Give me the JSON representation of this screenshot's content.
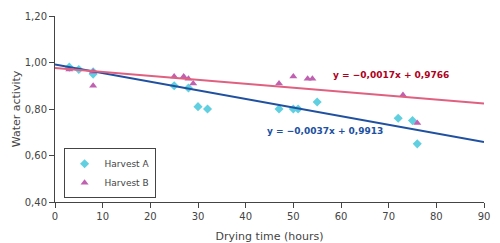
{
  "chart_data": {
    "type": "scatter",
    "x_label": "Drying time (hours)",
    "y_label": "Water activity",
    "series": [
      {
        "name": "Harvest A",
        "type": "scatter",
        "marker": "diamond",
        "color": "#60d0e0",
        "x": [
          3,
          5,
          8,
          8,
          25,
          28,
          30,
          32,
          47,
          50,
          51,
          55,
          72,
          75,
          76
        ],
        "values": [
          0.98,
          0.97,
          0.96,
          0.95,
          0.9,
          0.89,
          0.81,
          0.8,
          0.8,
          0.8,
          0.8,
          0.83,
          0.76,
          0.75,
          0.65
        ]
      },
      {
        "name": "Harvest B",
        "type": "scatter",
        "marker": "triangle",
        "color": "#c060b0",
        "x": [
          3,
          8,
          8,
          25,
          27,
          28,
          29,
          47,
          50,
          53,
          54,
          73,
          76
        ],
        "values": [
          0.97,
          0.96,
          0.9,
          0.94,
          0.94,
          0.93,
          0.91,
          0.91,
          0.94,
          0.93,
          0.93,
          0.86,
          0.74
        ]
      },
      {
        "type": "line",
        "color": "#2050a0",
        "x": [
          0,
          90
        ],
        "values": [
          0.9913,
          0.6583
        ]
      },
      {
        "type": "line",
        "color": "#e06080",
        "x": [
          0,
          90
        ],
        "values": [
          0.9766,
          0.8236
        ]
      }
    ],
    "annotations": [
      {
        "text": "y = −0,0037x + 0,9913",
        "x": 44,
        "y": 0.705,
        "color": "#2050a0"
      },
      {
        "text": "y = −0,0017x + 0,9766",
        "x": 58,
        "y": 0.945,
        "color": "#b00020"
      }
    ],
    "xlim": [
      0,
      90
    ],
    "ylim": [
      0.4,
      1.2
    ],
    "xticks": [
      0,
      10,
      20,
      30,
      40,
      50,
      60,
      70,
      80,
      90
    ],
    "yticks": [
      {
        "value": 0.4,
        "label": "0,40"
      },
      {
        "value": 0.6,
        "label": "0,60"
      },
      {
        "value": 0.8,
        "label": "0,80"
      },
      {
        "value": 1.0,
        "label": "1,00"
      },
      {
        "value": 1.2,
        "label": "1,20"
      }
    ],
    "grid": false,
    "legend": "lower left"
  }
}
